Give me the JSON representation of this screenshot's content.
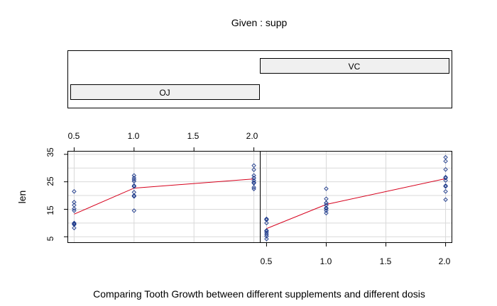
{
  "chart_data": {
    "type": "scatter",
    "given_label": "Given : supp",
    "xlabel": "Comparing Tooth Growth between different supplements and different dosis",
    "ylabel": "len",
    "x_ticks": [
      "0.5",
      "1.0",
      "1.5",
      "2.0"
    ],
    "y_ticks": [
      "5",
      "15",
      "25",
      "35"
    ],
    "xlim": [
      0.45,
      2.05
    ],
    "ylim": [
      3.0,
      36.0
    ],
    "grid": true,
    "colors": {
      "points": "#1f3b8c",
      "line": "#d6001c",
      "strip_fill": "#f0f0f0",
      "grid": "#d9d9d9"
    },
    "panels": [
      {
        "name": "OJ",
        "strip_label": "OJ",
        "x": [
          0.5,
          0.5,
          0.5,
          0.5,
          0.5,
          0.5,
          0.5,
          0.5,
          0.5,
          0.5,
          1.0,
          1.0,
          1.0,
          1.0,
          1.0,
          1.0,
          1.0,
          1.0,
          1.0,
          1.0,
          2.0,
          2.0,
          2.0,
          2.0,
          2.0,
          2.0,
          2.0,
          2.0,
          2.0,
          2.0
        ],
        "y": [
          15.2,
          21.5,
          17.6,
          9.7,
          14.5,
          10.0,
          8.2,
          9.4,
          16.5,
          9.7,
          19.7,
          23.3,
          23.6,
          26.4,
          20.0,
          25.2,
          25.8,
          21.2,
          14.5,
          27.3,
          25.5,
          26.4,
          22.4,
          24.5,
          24.8,
          30.9,
          26.4,
          27.3,
          29.4,
          23.0
        ],
        "trend": {
          "x": [
            0.5,
            1.0,
            2.0
          ],
          "y": [
            13.23,
            22.7,
            26.06
          ]
        }
      },
      {
        "name": "VC",
        "strip_label": "VC",
        "x": [
          0.5,
          0.5,
          0.5,
          0.5,
          0.5,
          0.5,
          0.5,
          0.5,
          0.5,
          0.5,
          1.0,
          1.0,
          1.0,
          1.0,
          1.0,
          1.0,
          1.0,
          1.0,
          1.0,
          1.0,
          2.0,
          2.0,
          2.0,
          2.0,
          2.0,
          2.0,
          2.0,
          2.0,
          2.0,
          2.0
        ],
        "y": [
          4.2,
          11.5,
          7.3,
          5.8,
          6.4,
          10.0,
          11.2,
          11.2,
          5.2,
          7.0,
          16.5,
          16.5,
          15.2,
          17.3,
          22.5,
          17.3,
          13.6,
          14.5,
          18.8,
          15.5,
          23.6,
          18.5,
          33.9,
          25.5,
          26.4,
          32.5,
          26.7,
          21.5,
          23.3,
          29.5
        ],
        "trend": {
          "x": [
            0.5,
            1.0,
            2.0
          ],
          "y": [
            7.98,
            16.77,
            26.14
          ]
        }
      }
    ]
  }
}
